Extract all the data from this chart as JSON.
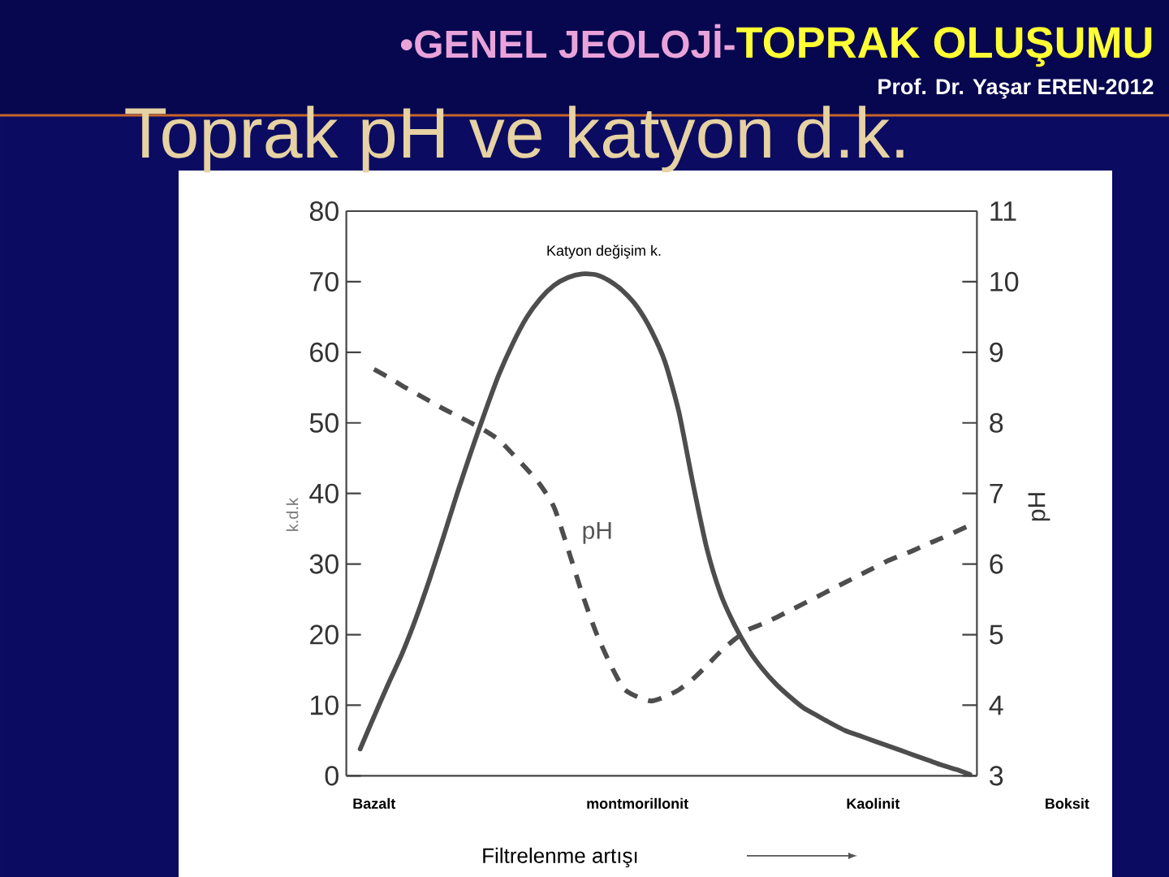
{
  "chart_data": {
    "type": "line",
    "title": "Toprak pH ve katyon d.k.",
    "subtitle": "•GENEL JEOLOJİ-**TOPRAK OLUŞUMU**",
    "annotations": [
      "Prof. Dr. Yaşar EREN-2012"
    ],
    "xlabel": "Filtrelenme artışı",
    "ylabel": "k.d.k",
    "y2label": "pH",
    "categories": [
      null,
      "Bazalt",
      null,
      null,
      null,
      null,
      null,
      null,
      null,
      null,
      null,
      null,
      null,
      null,
      null,
      null,
      null,
      null,
      null,
      null,
      "montmorillonit",
      null,
      null,
      null,
      null,
      null,
      null,
      null,
      null,
      null,
      null,
      null,
      null,
      null,
      null,
      null,
      null,
      "Kaolinit",
      null,
      null,
      null,
      null,
      null,
      null,
      null,
      null,
      null,
      null,
      null,
      null,
      null,
      "Boksit"
    ],
    "ylim": [
      0,
      80
    ],
    "yticks": [
      0,
      10,
      20,
      30,
      40,
      50,
      60,
      70,
      80
    ],
    "y2lim": [
      3,
      11
    ],
    "y2ticks": [
      3,
      4,
      5,
      6,
      7,
      8,
      9,
      10,
      11
    ],
    "series": [
      {
        "name": "Katyon değişim k.",
        "color": "#4d4d4d",
        "line_style": "solid",
        "values": [
          3.8,
          8.4,
          12.9,
          17.2,
          22.2,
          27.8,
          33.8,
          40,
          45.9,
          51.5,
          56.8,
          61.2,
          64.9,
          67.6,
          69.5,
          70.6,
          71.1,
          71,
          70.1,
          68.6,
          66.4,
          63.1,
          58.6,
          51.5,
          41.5,
          32.3,
          25.8,
          21.4,
          17.9,
          15.2,
          13,
          11.2,
          9.6,
          8.5,
          7.4,
          6.4,
          5.7,
          5,
          4.3,
          3.6,
          2.9,
          2.2,
          1.5,
          0.9,
          0.2,
          null,
          null,
          null,
          null,
          null,
          null,
          null
        ]
      },
      {
        "name": "pH",
        "color": "#4d4d4d",
        "line_style": "dashed",
        "axis": "y2",
        "values": [
          null,
          8.76,
          8.65,
          8.53,
          8.42,
          8.31,
          8.2,
          8.1,
          8.0,
          7.89,
          7.76,
          7.56,
          7.35,
          7.12,
          6.8,
          6.21,
          5.59,
          5.04,
          4.6,
          4.24,
          4.12,
          4.06,
          4.12,
          4.22,
          4.37,
          4.56,
          4.76,
          4.93,
          5.07,
          5.15,
          5.24,
          5.34,
          5.44,
          5.54,
          5.64,
          5.74,
          5.84,
          5.94,
          6.04,
          6.12,
          6.2,
          6.29,
          6.37,
          6.46,
          6.55,
          null,
          null,
          null,
          null,
          null,
          null,
          null
        ]
      }
    ]
  }
}
